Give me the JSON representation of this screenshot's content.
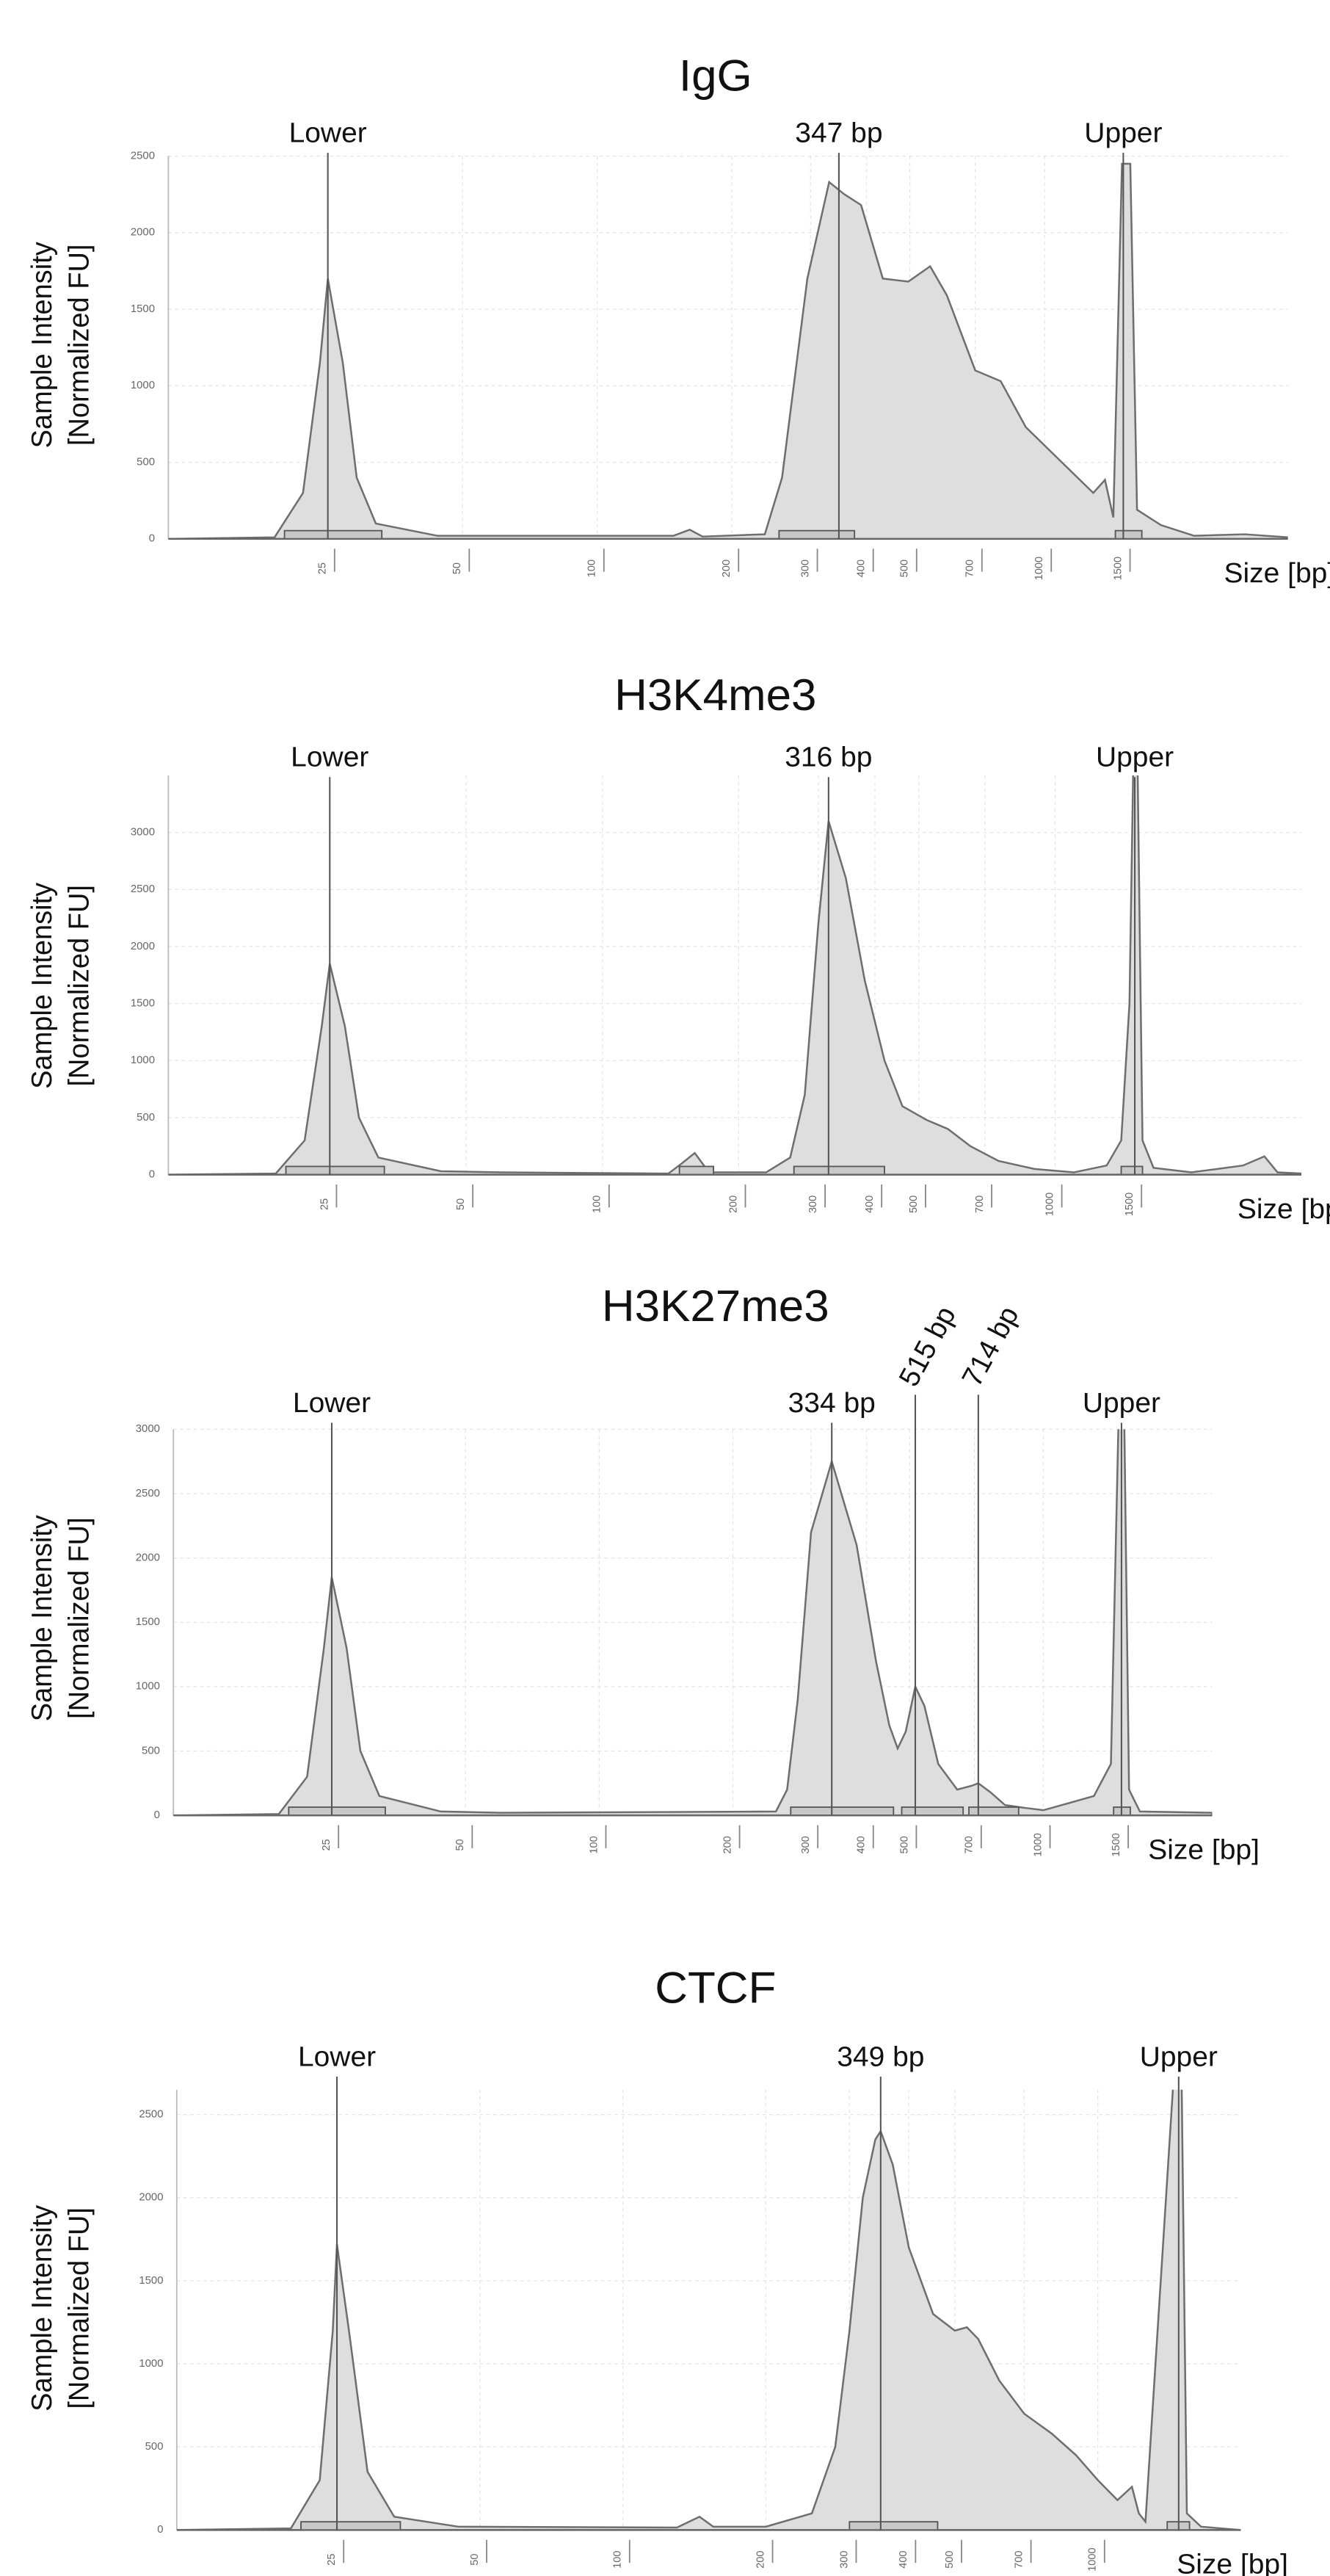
{
  "chart_data": [
    {
      "type": "area",
      "title": "IgG",
      "ylabel": [
        "Sample Intensity",
        "[Normalized FU]"
      ],
      "xlabel": "Size [bp]",
      "xscale": "log",
      "xlim": [
        11,
        3500
      ],
      "ylim": [
        0,
        2500
      ],
      "grid": true,
      "color": "#dedede",
      "line_color": "#6e6e6e",
      "xticks": [
        25,
        50,
        100,
        200,
        300,
        400,
        500,
        700,
        1000,
        1500
      ],
      "yticks": [
        0,
        500,
        1000,
        1500,
        2000,
        2500
      ],
      "x": [
        11,
        19,
        22,
        24,
        25,
        27,
        29,
        32,
        44,
        148,
        161,
        172,
        237,
        259,
        295,
        330,
        357,
        389,
        435,
        496,
        555,
        605,
        700,
        798,
        908,
        1080,
        1285,
        1365,
        1425,
        1490,
        1555,
        1610,
        1820,
        2160,
        2800,
        3500
      ],
      "values": [
        0,
        10,
        300,
        1150,
        1700,
        1150,
        400,
        100,
        20,
        20,
        60,
        15,
        30,
        400,
        1700,
        2330,
        2250,
        2180,
        1700,
        1680,
        1780,
        1590,
        1100,
        1030,
        730,
        515,
        300,
        385,
        140,
        2450,
        2450,
        190,
        90,
        20,
        30,
        10
      ],
      "peaks": [
        {
          "label": "Lower",
          "x": 25
        },
        {
          "label": "347 bp",
          "x": 347
        },
        {
          "label": "Upper",
          "x": 1500
        }
      ],
      "regions": [
        [
          20,
          33
        ],
        [
          255,
          376
        ],
        [
          1440,
          1650
        ]
      ]
    },
    {
      "type": "area",
      "title": "H3K4me3",
      "ylabel": [
        "Sample Intensity",
        "[Normalized FU]"
      ],
      "xlabel": "Size [bp]",
      "xscale": "log",
      "xlim": [
        11,
        3500
      ],
      "ylim": [
        0,
        3500
      ],
      "grid": true,
      "color": "#dedede",
      "line_color": "#6e6e6e",
      "xticks": [
        25,
        50,
        100,
        200,
        300,
        400,
        500,
        700,
        1000,
        1500
      ],
      "yticks": [
        0,
        500,
        1000,
        1500,
        2000,
        2500,
        3000
      ],
      "x": [
        11,
        19,
        22,
        24,
        25,
        27,
        29,
        32,
        44,
        60,
        140,
        150,
        160,
        172,
        230,
        260,
        280,
        300,
        316,
        345,
        380,
        420,
        460,
        520,
        580,
        650,
        750,
        900,
        1100,
        1300,
        1400,
        1460,
        1490,
        1520,
        1560,
        1650,
        2000,
        2600,
        2900,
        3100,
        3500
      ],
      "values": [
        0,
        10,
        300,
        1300,
        1850,
        1300,
        500,
        150,
        30,
        20,
        10,
        100,
        190,
        20,
        20,
        150,
        700,
        2200,
        3100,
        2600,
        1700,
        1000,
        600,
        480,
        400,
        250,
        120,
        50,
        20,
        80,
        300,
        1500,
        3700,
        3700,
        300,
        60,
        20,
        80,
        160,
        20,
        10
      ],
      "peaks": [
        {
          "label": "Lower",
          "x": 25
        },
        {
          "label": "316 bp",
          "x": 316
        },
        {
          "label": "Upper",
          "x": 1500
        }
      ],
      "regions": [
        [
          20,
          33
        ],
        [
          148,
          176
        ],
        [
          265,
          420
        ],
        [
          1400,
          1560
        ]
      ]
    },
    {
      "type": "area",
      "title": "H3K27me3",
      "ylabel": [
        "Sample Intensity",
        "[Normalized FU]"
      ],
      "xlabel": "Size [bp]",
      "xscale": "log",
      "xlim": [
        11,
        2400
      ],
      "ylim": [
        0,
        3000
      ],
      "grid": true,
      "color": "#dedede",
      "line_color": "#6e6e6e",
      "xticks": [
        25,
        50,
        100,
        200,
        300,
        400,
        500,
        700,
        1000,
        1500
      ],
      "yticks": [
        0,
        500,
        1000,
        1500,
        2000,
        2500,
        3000
      ],
      "x": [
        11,
        19,
        22,
        24,
        25,
        27,
        29,
        32,
        44,
        60,
        250,
        265,
        280,
        300,
        334,
        380,
        420,
        450,
        470,
        490,
        515,
        540,
        580,
        640,
        690,
        714,
        760,
        820,
        900,
        1000,
        1100,
        1300,
        1420,
        1480,
        1520,
        1560,
        1650,
        2400
      ],
      "values": [
        0,
        10,
        300,
        1300,
        1850,
        1300,
        500,
        150,
        30,
        20,
        30,
        200,
        900,
        2200,
        2750,
        2100,
        1200,
        700,
        520,
        650,
        1000,
        850,
        400,
        200,
        230,
        250,
        180,
        80,
        60,
        40,
        80,
        150,
        400,
        3200,
        3200,
        200,
        30,
        20
      ],
      "peaks": [
        {
          "label": "Lower",
          "x": 25
        },
        {
          "label": "334 bp",
          "x": 334
        },
        {
          "label": "515 bp",
          "x": 515
        },
        {
          "label": "714 bp",
          "x": 714
        },
        {
          "label": "Upper",
          "x": 1500
        }
      ],
      "regions": [
        [
          20,
          33
        ],
        [
          270,
          460
        ],
        [
          480,
          660
        ],
        [
          680,
          880
        ],
        [
          1440,
          1570
        ]
      ]
    },
    {
      "type": "area",
      "title": "CTCF",
      "ylabel": [
        "Sample Intensity",
        "[Normalized FU]"
      ],
      "xlabel": "Size [bp]",
      "xscale": "log",
      "xlim": [
        11.5,
        2000
      ],
      "ylim": [
        0,
        2650
      ],
      "grid": true,
      "color": "#dedede",
      "line_color": "#6e6e6e",
      "xticks": [
        25,
        50,
        100,
        200,
        300,
        400,
        500,
        700,
        1000
      ],
      "yticks": [
        0,
        500,
        1000,
        1500,
        2000,
        2500
      ],
      "x": [
        11.5,
        20,
        23,
        24.5,
        25,
        26.5,
        29,
        33,
        45,
        130,
        145,
        155,
        200,
        250,
        280,
        300,
        320,
        340,
        349,
        370,
        400,
        450,
        500,
        530,
        560,
        620,
        700,
        800,
        900,
        1000,
        1100,
        1180,
        1220,
        1260,
        1450,
        1500,
        1540,
        1650,
        2000
      ],
      "values": [
        0,
        10,
        300,
        1200,
        1720,
        1200,
        350,
        80,
        20,
        15,
        80,
        20,
        20,
        100,
        500,
        1200,
        2000,
        2350,
        2400,
        2200,
        1700,
        1300,
        1200,
        1220,
        1150,
        900,
        700,
        580,
        450,
        300,
        180,
        260,
        100,
        50,
        2800,
        2800,
        100,
        20,
        0
      ],
      "peaks": [
        {
          "label": "Lower",
          "x": 25
        },
        {
          "label": "349 bp",
          "x": 349
        },
        {
          "label": "Upper",
          "x": 1480
        }
      ],
      "regions": [
        [
          21,
          34
        ],
        [
          300,
          460
        ],
        [
          1400,
          1560
        ]
      ]
    }
  ]
}
